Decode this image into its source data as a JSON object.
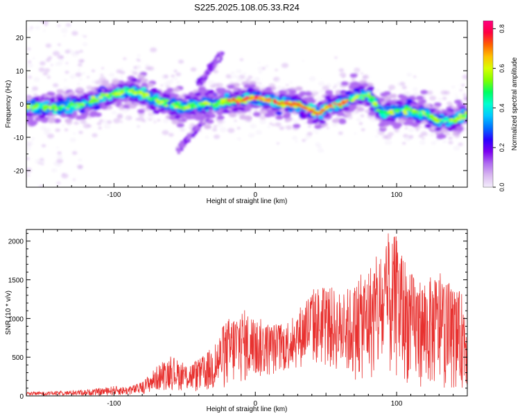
{
  "figure": {
    "title": "S225.2025.108.05.33.R24"
  },
  "colorbar": {
    "label": "Normalized spectral amplitude",
    "ticks": [
      "0.0",
      "0.2",
      "0.4",
      "0.6",
      "0.8"
    ],
    "tick_values": [
      0.0,
      0.2,
      0.4,
      0.6,
      0.8
    ],
    "range": [
      0,
      0.84
    ],
    "colormap": [
      "#f4eefc",
      "#d9b8f0",
      "#b06cf0",
      "#7c00f0",
      "#2a00ff",
      "#0070ff",
      "#00c8ff",
      "#00ffd0",
      "#00ff60",
      "#80ff00",
      "#d8ff00",
      "#ffc000",
      "#ff6000",
      "#ff0040",
      "#ff0080"
    ]
  },
  "chart_data": [
    {
      "type": "heatmap",
      "xlabel": "Height of straight line (km)",
      "ylabel": "Frequency (Hz)",
      "xlim": [
        -162,
        150
      ],
      "ylim": [
        -25,
        25
      ],
      "xticks": [
        -100,
        0,
        100
      ],
      "yticks": [
        -20,
        -10,
        0,
        10,
        20
      ],
      "xticklabels": [
        "-100",
        "0",
        "100"
      ],
      "yticklabels": [
        "-20",
        "-10",
        "0",
        "10",
        "20"
      ],
      "grid": false,
      "ridge": {
        "x": [
          -160,
          -140,
          -120,
          -110,
          -100,
          -90,
          -80,
          -70,
          -60,
          -50,
          -40,
          -30,
          -20,
          -10,
          0,
          10,
          20,
          30,
          40,
          45,
          50,
          60,
          70,
          80,
          90,
          100,
          110,
          120,
          130,
          140,
          150
        ],
        "y": [
          -1,
          -1,
          0,
          2,
          3,
          4,
          3,
          1,
          0,
          -1,
          0,
          0,
          1,
          1,
          2,
          1,
          0,
          0,
          -2,
          -3,
          -1,
          0,
          2,
          3,
          -3,
          -2,
          -2,
          -3,
          -5,
          -5,
          -3
        ]
      },
      "streaks": [
        {
          "x": [
            -55,
            -30
          ],
          "y": [
            -14,
            -2
          ]
        },
        {
          "x": [
            -40,
            -24
          ],
          "y": [
            6,
            15
          ]
        }
      ]
    },
    {
      "type": "line",
      "xlabel": "Height of straight line (km)",
      "ylabel": "SNR (10 * v/v)",
      "xlim": [
        -162,
        150
      ],
      "ylim": [
        0,
        2150
      ],
      "xticks": [
        -100,
        0,
        100
      ],
      "yticks": [
        0,
        500,
        1000,
        1500,
        2000
      ],
      "xticklabels": [
        "-100",
        "0",
        "100"
      ],
      "yticklabels": [
        "0",
        "500",
        "1000",
        "1500",
        "2000"
      ],
      "grid": false,
      "series": [
        {
          "color": "#e8312f",
          "envelope_x": [
            -162,
            -140,
            -120,
            -110,
            -100,
            -90,
            -80,
            -70,
            -60,
            -50,
            -40,
            -30,
            -20,
            -10,
            0,
            10,
            20,
            30,
            40,
            50,
            60,
            70,
            80,
            90,
            100,
            110,
            120,
            130,
            140,
            150
          ],
          "envelope_low": [
            5,
            5,
            5,
            5,
            5,
            10,
            20,
            60,
            80,
            60,
            40,
            50,
            100,
            150,
            200,
            250,
            300,
            350,
            400,
            350,
            300,
            200,
            200,
            200,
            200,
            150,
            100,
            100,
            100,
            100
          ],
          "envelope_high": [
            50,
            60,
            80,
            100,
            130,
            120,
            180,
            380,
            520,
            420,
            470,
            650,
            1000,
            1150,
            1030,
            950,
            950,
            1120,
            1400,
            1450,
            1350,
            1450,
            1700,
            1900,
            2100,
            1600,
            1500,
            1600,
            1400,
            1300
          ],
          "peak": {
            "x": 94,
            "y": 2100
          }
        }
      ]
    }
  ]
}
